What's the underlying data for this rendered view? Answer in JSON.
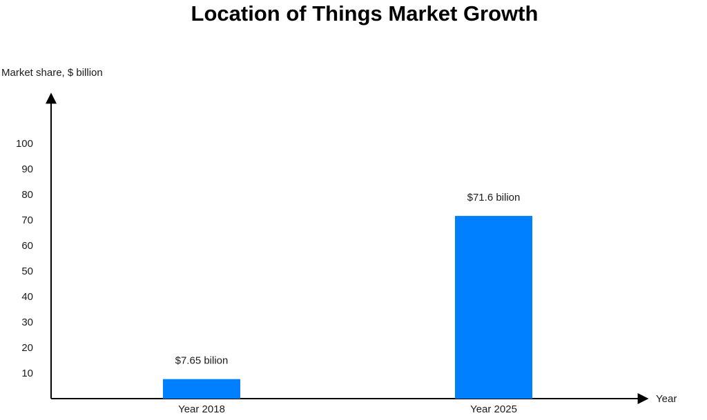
{
  "chart_data": {
    "type": "bar",
    "title": "Location of Things Market Growth",
    "ylabel": "Market share, $ billion",
    "xlabel": "Year",
    "categories": [
      "Year 2018",
      "Year 2025"
    ],
    "values": [
      7.65,
      71.6
    ],
    "data_labels": [
      "$7.65 bilion",
      "$71.6 bilion"
    ],
    "yticks": [
      10,
      20,
      30,
      40,
      50,
      60,
      70,
      80,
      90,
      100
    ],
    "ylim": [
      0,
      100
    ],
    "bar_color": "#0080FF",
    "axis_color": "#000000",
    "grid": false
  }
}
